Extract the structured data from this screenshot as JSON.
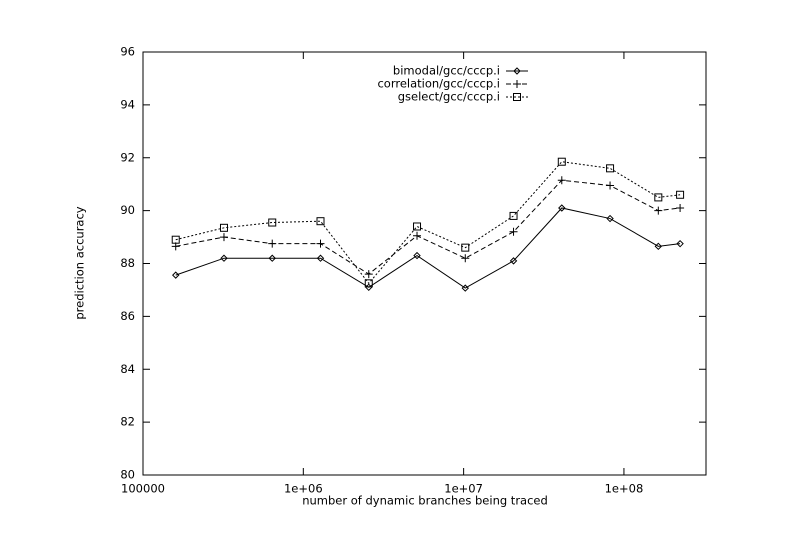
{
  "chart_data": {
    "type": "line",
    "xlabel": "number of dynamic branches being traced",
    "ylabel": "prediction accuracy",
    "x": [
      160000,
      320000,
      640000,
      1280000,
      2560000,
      5120000,
      10240000,
      20480000,
      40960000,
      81920000,
      163840000,
      224000000
    ],
    "xscale": "log",
    "xlim": [
      100000,
      325000000
    ],
    "xticks": [
      100000,
      {
        "value": 1000000,
        "label": "1e+06"
      },
      {
        "value": 10000000,
        "label": "1e+07"
      },
      {
        "value": 100000000,
        "label": "1e+08"
      }
    ],
    "ylim": [
      80,
      96
    ],
    "yticks": [
      80,
      82,
      84,
      86,
      88,
      90,
      92,
      94,
      96
    ],
    "legend": "top-right",
    "series": [
      {
        "name": "bimodal/gcc/cccp.i",
        "color": "#000000",
        "marker": "diamond",
        "dash": "solid",
        "values": [
          87.56,
          88.2,
          88.2,
          88.2,
          87.1,
          88.3,
          87.07,
          88.1,
          90.1,
          89.7,
          88.65,
          88.75
        ]
      },
      {
        "name": "correlation/gcc/cccp.i",
        "color": "#000000",
        "marker": "plus",
        "dash": "dashed",
        "values": [
          88.65,
          89.0,
          88.75,
          88.75,
          87.6,
          89.05,
          88.2,
          89.2,
          91.15,
          90.95,
          90.0,
          90.1
        ]
      },
      {
        "name": "gselect/gcc/cccp.i",
        "color": "#000000",
        "marker": "square",
        "dash": "dotted",
        "values": [
          88.9,
          89.35,
          89.55,
          89.6,
          87.25,
          89.4,
          88.6,
          89.8,
          91.85,
          91.6,
          90.5,
          90.6
        ]
      }
    ]
  }
}
